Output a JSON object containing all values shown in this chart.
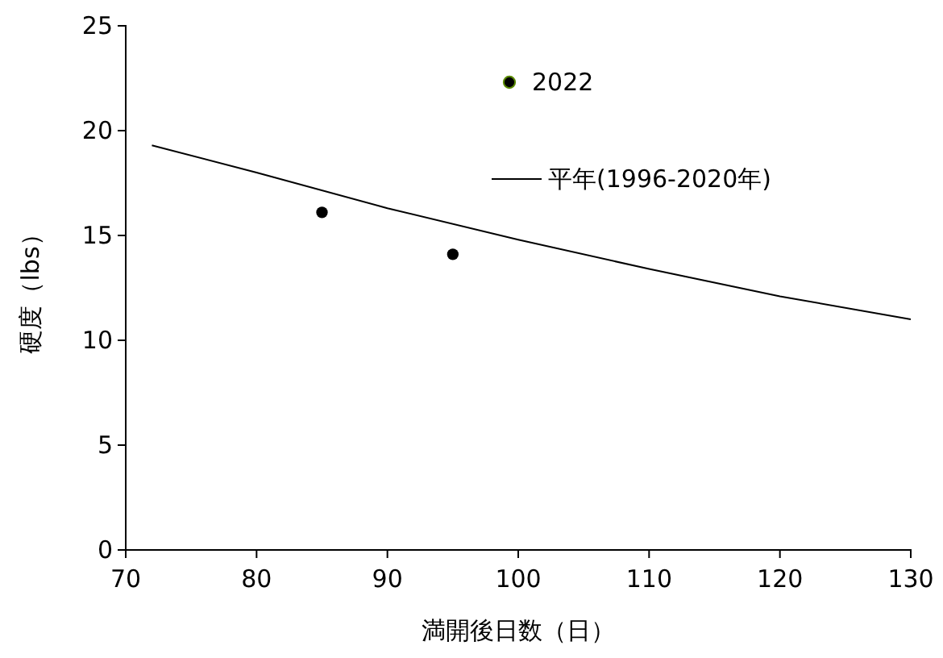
{
  "chart_data": {
    "type": "scatter",
    "xlabel": "満開後日数（日）",
    "ylabel": "硬度（lbs）",
    "xlim": [
      70,
      130
    ],
    "xticks": [
      70,
      80,
      90,
      100,
      110,
      120,
      130
    ],
    "ylim": [
      0,
      25
    ],
    "yticks": [
      0,
      5,
      10,
      15,
      20,
      25
    ],
    "grid": false,
    "legend": "top right",
    "marker": "circle",
    "series": [
      {
        "name": "2022",
        "color": "#000000",
        "x": [
          85,
          95
        ],
        "values": [
          16.1,
          14.1
        ]
      },
      {
        "name": "平年(1996-2020年)",
        "type": "line",
        "color": "#000000",
        "marker": "none",
        "x": [
          72,
          80,
          90,
          100,
          110,
          120,
          130
        ],
        "values": [
          19.3,
          18.0,
          16.3,
          14.8,
          13.4,
          12.1,
          11.0
        ]
      }
    ]
  }
}
